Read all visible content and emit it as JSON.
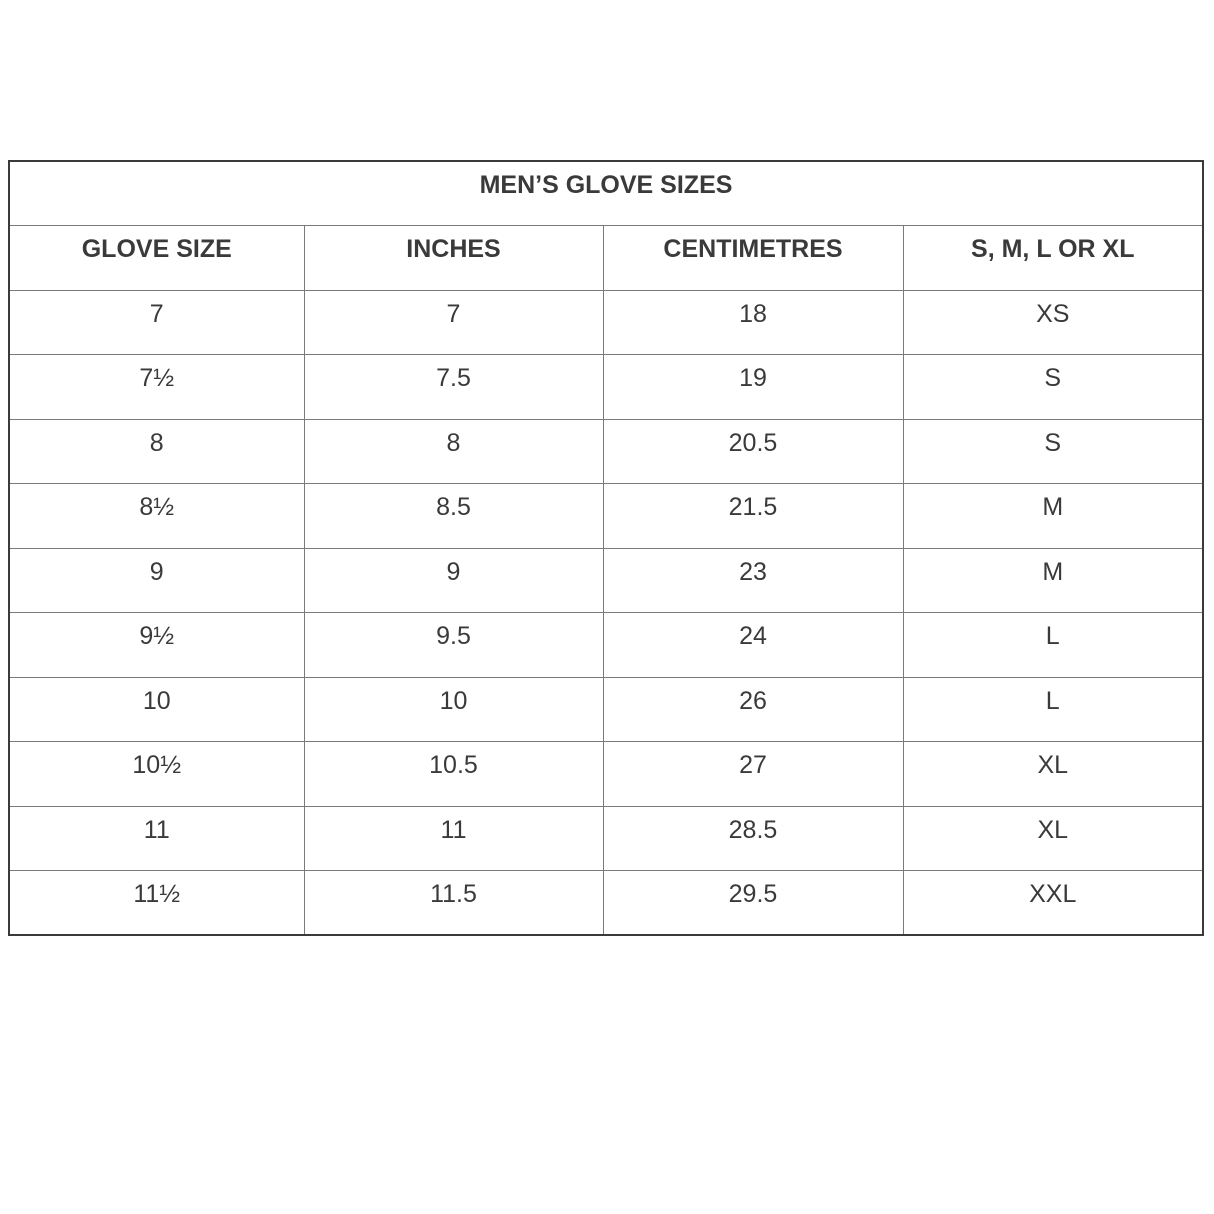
{
  "title": "MEN’S GLOVE SIZES",
  "columns": [
    "GLOVE SIZE",
    "INCHES",
    "CENTIMETRES",
    "S, M, L OR XL"
  ],
  "rows": [
    [
      "7",
      "7",
      "18",
      "XS"
    ],
    [
      "7½",
      "7.5",
      "19",
      "S"
    ],
    [
      "8",
      "8",
      "20.5",
      "S"
    ],
    [
      "8½",
      "8.5",
      "21.5",
      "M"
    ],
    [
      "9",
      "9",
      "23",
      "M"
    ],
    [
      "9½",
      "9.5",
      "24",
      "L"
    ],
    [
      "10",
      "10",
      "26",
      "L"
    ],
    [
      "10½",
      "10.5",
      "27",
      "XL"
    ],
    [
      "11",
      "11",
      "28.5",
      "XL"
    ],
    [
      "11½",
      "11.5",
      "29.5",
      "XXL"
    ]
  ]
}
